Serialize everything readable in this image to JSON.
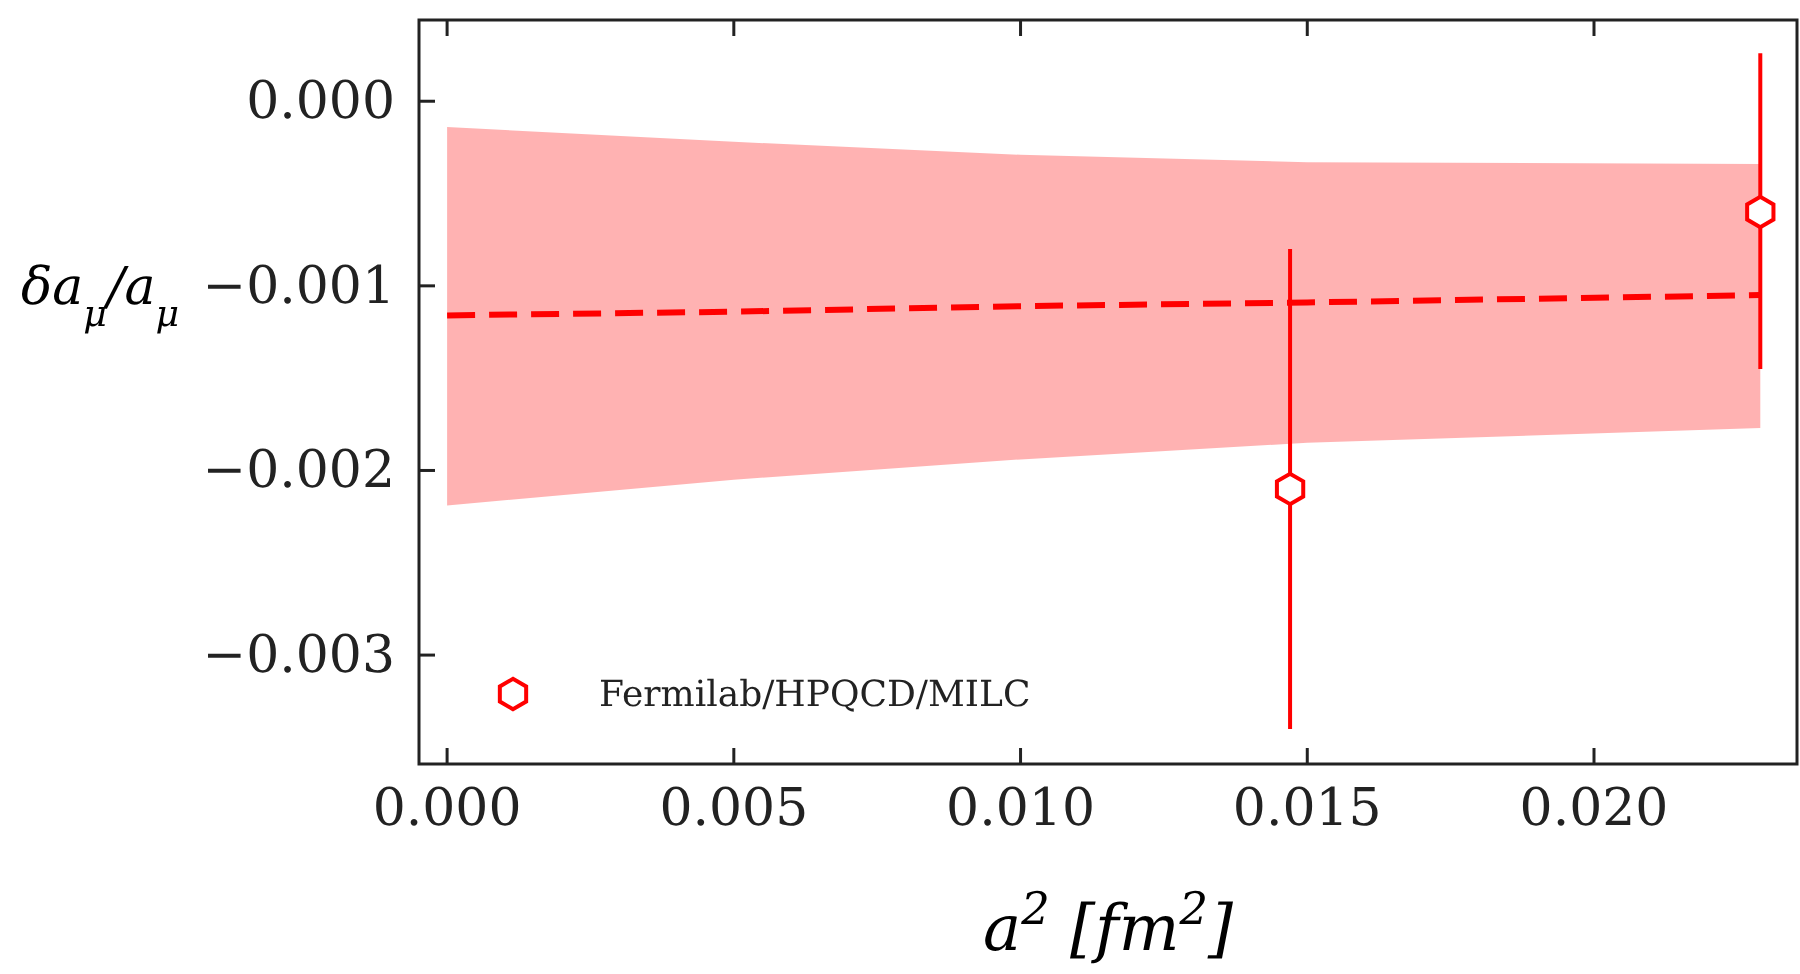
{
  "chart_data": {
    "type": "scatter",
    "xlabel": "a$^{2}$ [fm$^{2}$]",
    "ylabel": "δa$_{μ}$/a$_{μ}$",
    "xlim": [
      -0.00049,
      0.02354
    ],
    "xticks": [
      {
        "value": 0,
        "label": "0.000"
      },
      0.005,
      {
        "value": 0.01,
        "label": "0.010"
      },
      0.015,
      {
        "value": 0.02,
        "label": "0.020"
      }
    ],
    "ylim": [
      -0.00359,
      0.00044
    ],
    "yticks": [
      {
        "value": -0.003,
        "label": "−0.003"
      },
      {
        "value": -0.002,
        "label": "−0.002"
      },
      {
        "value": -0.001,
        "label": "−0.001"
      },
      {
        "value": 0,
        "label": "0.000"
      }
    ],
    "legend": "bottom left",
    "grid": false,
    "series": [
      {
        "type": "line",
        "color": "#ff0000",
        "line_style": "dashed",
        "marker": "none",
        "x": [
          0,
          0.005,
          0.01,
          0.015,
          0.0229
        ],
        "values": [
          -0.00116,
          -0.00114,
          -0.00111,
          -0.00109,
          -0.00105
        ],
        "lower": [
          -0.00219,
          -0.00205,
          -0.00194,
          -0.00185,
          -0.00177
        ],
        "upper": [
          -0.00014,
          -0.00022,
          -0.00029,
          -0.00033,
          -0.00034
        ]
      },
      {
        "name": "Fermilab/HPQCD/MILC",
        "color": "#ff0000",
        "x": [
          0.0147,
          0.0229
        ],
        "values": [
          -0.0021,
          -0.0006
        ],
        "errors": [
          [
            -0.0034,
            -0.0008
          ],
          [
            -0.00145,
            0.00026
          ]
        ]
      }
    ]
  }
}
